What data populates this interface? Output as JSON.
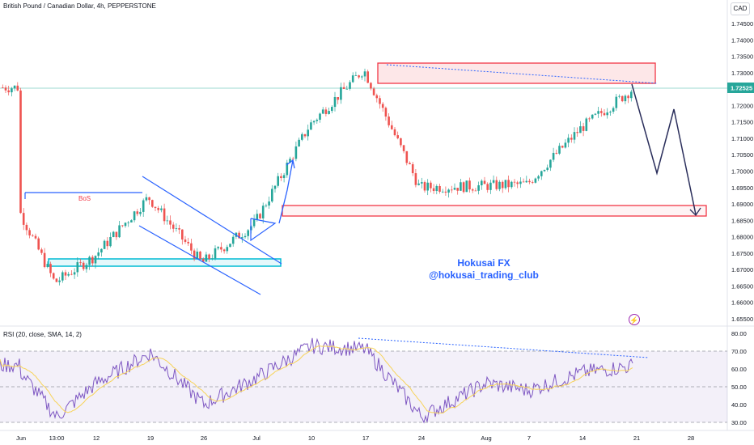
{
  "header": {
    "title": "British Pound / Canadian Dollar, 4h, PEPPERSTONE",
    "currency": "CAD"
  },
  "rsi_header": "RSI (20, close, SMA, 14, 2)",
  "watermark": {
    "line1": "Hokusai FX",
    "line2": "@hokusai_trading_club"
  },
  "annotations": {
    "bos": "BoS"
  },
  "colors": {
    "bull": "#26a69a",
    "bear": "#ef5350",
    "trend": "#2962ff",
    "zone": "#f23645",
    "demand": "#00bcd4",
    "projection": "#2a2e5b",
    "rsi": "#7e57c2",
    "rsi_ma": "#f7d358"
  },
  "chart_data": [
    {
      "type": "candlestick",
      "title": "British Pound / Canadian Dollar, 4h, PEPPERSTONE",
      "ylim": [
        1.65,
        1.75
      ],
      "y_ticks": [
        "1.74500",
        "1.74000",
        "1.73500",
        "1.73000",
        "1.72500",
        "1.72000",
        "1.71500",
        "1.71000",
        "1.70500",
        "1.70000",
        "1.69500",
        "1.69000",
        "1.68500",
        "1.68000",
        "1.67500",
        "1.67000",
        "1.66500",
        "1.66000",
        "1.65500"
      ],
      "x_ticks": [
        "Jun",
        "13:00",
        "12",
        "19",
        "26",
        "Jul",
        "10",
        "17",
        "24",
        "Aug",
        "7",
        "14",
        "21",
        "28"
      ],
      "last_price": "1.72525",
      "keypoints": [
        {
          "x": "Jun",
          "y": 1.688
        },
        {
          "x": "13:00",
          "y": 1.666
        },
        {
          "x": "12",
          "y": 1.674
        },
        {
          "x": "19",
          "y": 1.692
        },
        {
          "x": "26",
          "y": 1.672
        },
        {
          "x": "Jul",
          "y": 1.684
        },
        {
          "x": "10",
          "y": 1.714
        },
        {
          "x": "17",
          "y": 1.731
        },
        {
          "x": "24",
          "y": 1.695
        },
        {
          "x": "Aug",
          "y": 1.6955
        },
        {
          "x": "7",
          "y": 1.696
        },
        {
          "x": "14",
          "y": 1.713
        },
        {
          "x": "21",
          "y": 1.7255
        }
      ]
    },
    {
      "type": "line",
      "title": "RSI (20, close, SMA, 14, 2)",
      "ylim": [
        30,
        80
      ],
      "y_ticks": [
        "80.00",
        "70.00",
        "60.00",
        "50.00",
        "40.00",
        "30.00"
      ],
      "band": [
        30,
        70
      ],
      "keypoints": [
        {
          "x": "Jun",
          "y": 58
        },
        {
          "x": "13:00",
          "y": 33
        },
        {
          "x": "12",
          "y": 52
        },
        {
          "x": "19",
          "y": 69
        },
        {
          "x": "26",
          "y": 40
        },
        {
          "x": "Jul",
          "y": 55
        },
        {
          "x": "10",
          "y": 73
        },
        {
          "x": "17",
          "y": 71
        },
        {
          "x": "24",
          "y": 33
        },
        {
          "x": "Aug",
          "y": 52
        },
        {
          "x": "7",
          "y": 48
        },
        {
          "x": "14",
          "y": 58
        },
        {
          "x": "21",
          "y": 62
        }
      ]
    }
  ]
}
